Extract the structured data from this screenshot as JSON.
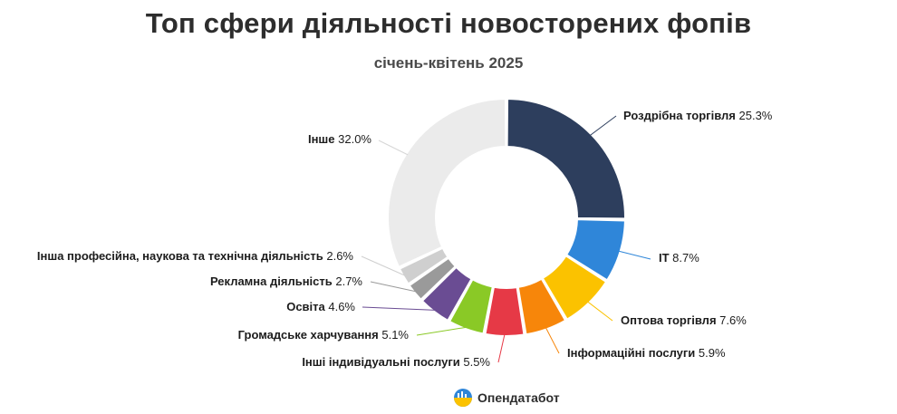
{
  "title": "Топ сфери діяльності новосторених фопів",
  "subtitle": "січень-квітень 2025",
  "brand": {
    "name": "Опендатабот",
    "icon": "opendatabot-logo-icon"
  },
  "chart_data": {
    "type": "pie",
    "style": "donut",
    "slices": [
      {
        "label": "Роздрібна торгівля",
        "value": 25.3,
        "value_text": "25.3%",
        "color": "#2d3e5d"
      },
      {
        "label": "IT",
        "value": 8.7,
        "value_text": "8.7%",
        "color": "#2f86d9"
      },
      {
        "label": "Оптова торгівля",
        "value": 7.6,
        "value_text": "7.6%",
        "color": "#fbc200"
      },
      {
        "label": "Інформаційні послуги",
        "value": 5.9,
        "value_text": "5.9%",
        "color": "#f7860a"
      },
      {
        "label": "Інші індивідуальні послуги",
        "value": 5.5,
        "value_text": "5.5%",
        "color": "#e63946"
      },
      {
        "label": "Громадське харчування",
        "value": 5.1,
        "value_text": "5.1%",
        "color": "#8ac926"
      },
      {
        "label": "Освіта",
        "value": 4.6,
        "value_text": "4.6%",
        "color": "#6a4c93"
      },
      {
        "label": "Рекламна діяльність",
        "value": 2.7,
        "value_text": "2.7%",
        "color": "#9a9a9a"
      },
      {
        "label": "Інша професійна, наукова та технічна діяльність",
        "value": 2.6,
        "value_text": "2.6%",
        "color": "#cfcfcf"
      },
      {
        "label": "Інше",
        "value": 32.0,
        "value_text": "32.0%",
        "color": "#ebebeb"
      }
    ]
  }
}
